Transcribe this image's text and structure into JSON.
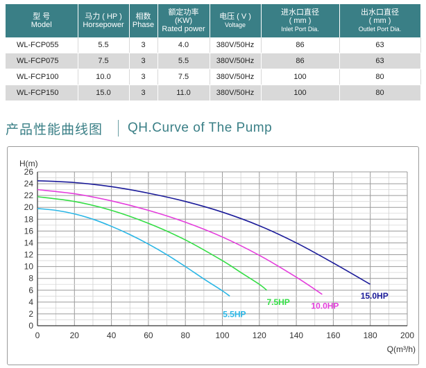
{
  "table": {
    "headers": [
      {
        "cn": "型 号",
        "en": "Model"
      },
      {
        "cn": "马力 ( HP )",
        "en": "Horsepower"
      },
      {
        "cn": "相数",
        "en": "Phase"
      },
      {
        "cn": "额定功率",
        "cn2": "(KW)",
        "en": "Rated power"
      },
      {
        "cn": "电压 ( V )",
        "en": "Voltage"
      },
      {
        "cn": "进水口直径",
        "cn2": "( mm )",
        "en": "Inlet Port Dia."
      },
      {
        "cn": "出水口直径",
        "cn2": "( mm )",
        "en": "Outlet Port Dia."
      }
    ],
    "rows": [
      [
        "WL-FCP055",
        "5.5",
        "3",
        "4.0",
        "380V/50Hz",
        "86",
        "63"
      ],
      [
        "WL-FCP075",
        "7.5",
        "3",
        "5.5",
        "380V/50Hz",
        "86",
        "63"
      ],
      [
        "WL-FCP100",
        "10.0",
        "3",
        "7.5",
        "380V/50Hz",
        "100",
        "80"
      ],
      [
        "WL-FCP150",
        "15.0",
        "3",
        "11.0",
        "380V/50Hz",
        "100",
        "80"
      ]
    ]
  },
  "section_title": {
    "cn": "产品性能曲线图",
    "en": "QH.Curve of The Pump"
  },
  "colors": {
    "header_bg": "#3a7f86",
    "title": "#3a7f86"
  },
  "chart_data": {
    "type": "line",
    "title": "",
    "xlabel": "Q(m³/h)",
    "ylabel": "H(m)",
    "xlim": [
      0,
      200
    ],
    "ylim": [
      0,
      26
    ],
    "xticks": [
      0,
      20,
      40,
      60,
      80,
      100,
      120,
      140,
      160,
      180,
      200
    ],
    "yticks": [
      0,
      2,
      4,
      6,
      8,
      10,
      12,
      14,
      16,
      18,
      20,
      22,
      24,
      26
    ],
    "grid": true,
    "series": [
      {
        "name": "5.5HP",
        "color": "#29b6e6",
        "x": [
          0,
          10,
          20,
          30,
          40,
          50,
          60,
          70,
          80,
          90,
          100,
          104
        ],
        "y": [
          19.8,
          19.5,
          18.9,
          18.0,
          16.8,
          15.4,
          13.8,
          12.0,
          10.0,
          7.9,
          5.9,
          5.0
        ]
      },
      {
        "name": "7.5HP",
        "color": "#33dd44",
        "x": [
          0,
          20,
          40,
          60,
          80,
          100,
          110,
          120,
          124
        ],
        "y": [
          21.8,
          21.0,
          19.5,
          17.3,
          14.5,
          11.0,
          9.0,
          7.0,
          6.0
        ]
      },
      {
        "name": "10.0HP",
        "color": "#e43ddc",
        "x": [
          0,
          20,
          40,
          60,
          80,
          100,
          120,
          140,
          154
        ],
        "y": [
          23.0,
          22.3,
          21.1,
          19.5,
          17.5,
          15.0,
          11.9,
          8.2,
          5.3
        ]
      },
      {
        "name": "15.0HP",
        "color": "#1a1a99",
        "x": [
          0,
          20,
          40,
          60,
          80,
          100,
          120,
          140,
          160,
          180
        ],
        "y": [
          24.5,
          24.2,
          23.5,
          22.4,
          21.0,
          19.2,
          16.9,
          14.0,
          10.6,
          7.0
        ]
      }
    ]
  }
}
